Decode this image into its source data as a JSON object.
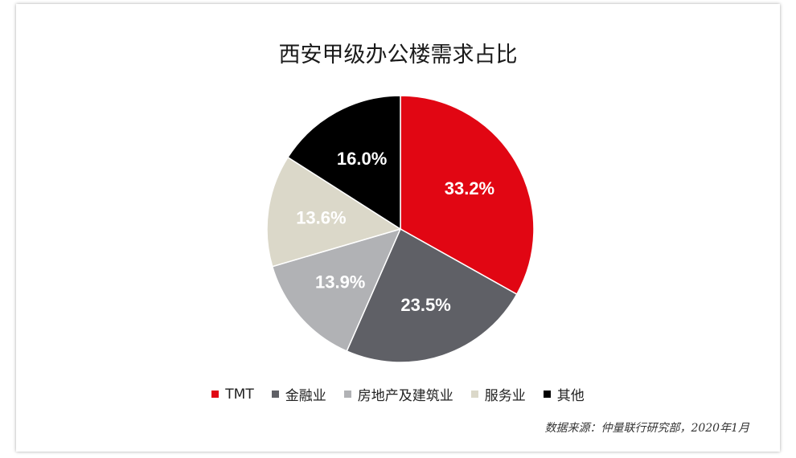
{
  "chart_data": {
    "type": "pie",
    "title": "西安甲级办公楼需求占比",
    "categories": [
      "TMT",
      "金融业",
      "房地产及建筑业",
      "服务业",
      "其他"
    ],
    "values": [
      33.2,
      23.5,
      13.9,
      13.6,
      16.0
    ],
    "data_labels": [
      "33.2%",
      "23.5%",
      "13.9%",
      "13.6%",
      "16.0%"
    ],
    "colors": [
      "#e10613",
      "#5f6066",
      "#b1b2b5",
      "#dbd8c9",
      "#000000"
    ],
    "label_colors": [
      "#ffffff",
      "#ffffff",
      "#ffffff",
      "#ffffff",
      "#ffffff"
    ],
    "start_angle": "12 o'clock",
    "direction": "clockwise",
    "legend_position": "bottom"
  },
  "source": "数据来源：仲量联行研究部，2020年1月"
}
